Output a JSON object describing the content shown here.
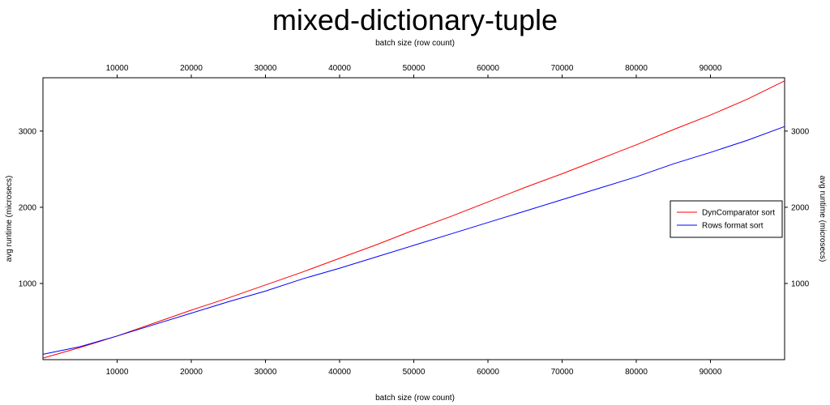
{
  "chart_data": {
    "type": "line",
    "title": "mixed-dictionary-tuple",
    "xlabel": "batch size (row count)",
    "ylabel": "avg runtime (microsecs)",
    "xlim": [
      0,
      100000
    ],
    "ylim": [
      0,
      3700
    ],
    "x_ticks": [
      10000,
      20000,
      30000,
      40000,
      50000,
      60000,
      70000,
      80000,
      90000
    ],
    "y_ticks": [
      1000,
      2000,
      3000
    ],
    "grid": false,
    "legend_position": "right",
    "colors": {
      "DynComparator sort": "#ff0000",
      "Rows format sort": "#0000ff"
    },
    "x": [
      0,
      5000,
      10000,
      15000,
      20000,
      25000,
      30000,
      35000,
      40000,
      45000,
      50000,
      55000,
      60000,
      65000,
      70000,
      75000,
      80000,
      85000,
      90000,
      95000,
      100000
    ],
    "series": [
      {
        "name": "DynComparator sort",
        "values": [
          20,
          160,
          310,
          480,
          650,
          810,
          980,
          1150,
          1330,
          1510,
          1700,
          1880,
          2070,
          2260,
          2440,
          2630,
          2820,
          3020,
          3210,
          3420,
          3660
        ]
      },
      {
        "name": "Rows format sort",
        "values": [
          70,
          170,
          310,
          460,
          610,
          760,
          900,
          1060,
          1200,
          1350,
          1500,
          1650,
          1800,
          1950,
          2100,
          2250,
          2400,
          2570,
          2720,
          2880,
          3060
        ]
      }
    ]
  }
}
